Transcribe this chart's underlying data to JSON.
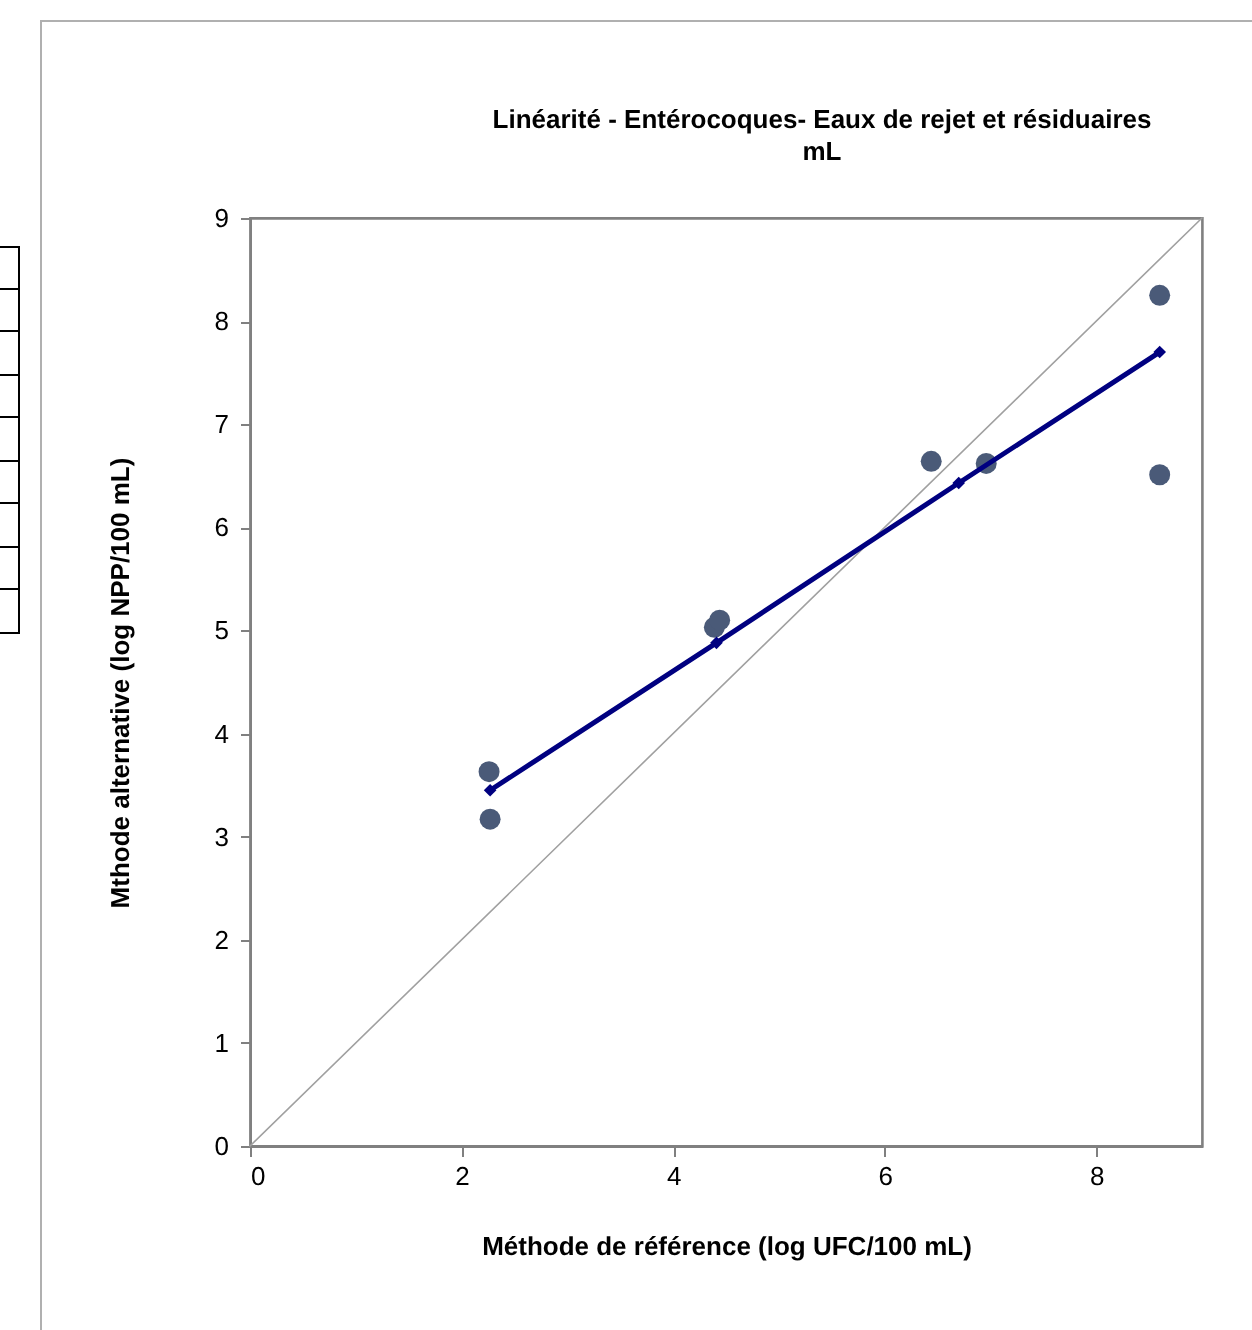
{
  "chart_data": {
    "type": "scatter",
    "title": "Linéarité - Entérocoques- Eaux de rejet et résiduaires mL",
    "xlabel": "Méthode de référence (log UFC/100 mL)",
    "ylabel": "Mthode alternative (log NPP/100 mL)",
    "xlim": [
      0,
      9
    ],
    "xticks": [
      0,
      2,
      4,
      6,
      8
    ],
    "ylim": [
      0,
      9
    ],
    "yticks": [
      0,
      1,
      2,
      3,
      4,
      5,
      6,
      7,
      8,
      9
    ],
    "grid": false,
    "series": [
      {
        "type": "line",
        "color": "#a0a0a0",
        "marker": "none",
        "x": [
          0,
          9
        ],
        "values": [
          0,
          9
        ]
      },
      {
        "color": "#4a5a78",
        "marker": "circle",
        "x": [
          2.26,
          2.27,
          4.39,
          4.44,
          6.44,
          6.96,
          8.6,
          8.6
        ],
        "values": [
          3.63,
          3.17,
          5.03,
          5.1,
          6.64,
          6.62,
          8.25,
          6.51
        ]
      },
      {
        "type": "line",
        "color": "#000080",
        "marker": "diamond",
        "x": [
          2.27,
          4.41,
          6.7,
          8.6
        ],
        "values": [
          3.45,
          4.88,
          6.43,
          7.7
        ]
      }
    ]
  }
}
